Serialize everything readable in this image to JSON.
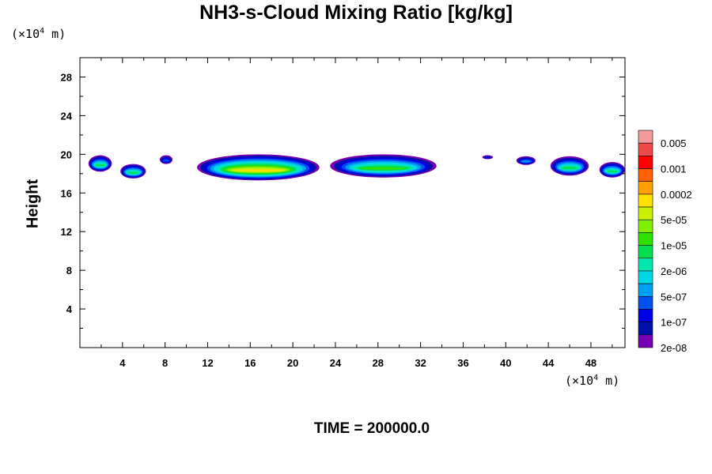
{
  "chart_data": {
    "type": "heatmap",
    "title": "NH3-s-Cloud Mixing Ratio [kg/kg]",
    "ylabel": "Height",
    "xlabel": "",
    "x_unit_prefix": "(×10",
    "x_unit_exp": "4",
    "x_unit_suffix": " m)",
    "y_unit_prefix": "(×10",
    "y_unit_exp": "4",
    "y_unit_suffix": " m)",
    "xlim": [
      0,
      51.2
    ],
    "ylim": [
      0,
      30
    ],
    "x_ticks": [
      4,
      8,
      12,
      16,
      20,
      24,
      28,
      32,
      36,
      40,
      44,
      48
    ],
    "y_ticks": [
      4,
      8,
      12,
      16,
      20,
      24,
      28
    ],
    "colorbar": {
      "labels": [
        "0.005",
        "0.001",
        "0.0002",
        "5e-05",
        "1e-05",
        "2e-06",
        "5e-07",
        "1e-07",
        "2e-08"
      ],
      "colors": [
        "#f39a9a",
        "#ee4a4a",
        "#ff0000",
        "#ff6000",
        "#ffa000",
        "#ffe000",
        "#c8f000",
        "#80f000",
        "#30e000",
        "#00e050",
        "#00e8b0",
        "#00d8e8",
        "#00a0f0",
        "#0050f0",
        "#0000e8",
        "#0010a8",
        "#7800b4"
      ]
    },
    "series": [
      {
        "x": [
          0.8,
          3.0
        ],
        "y": [
          18.2,
          19.9
        ],
        "peak": 9
      },
      {
        "x": [
          3.8,
          6.2
        ],
        "y": [
          17.5,
          19.0
        ],
        "peak": 9
      },
      {
        "x": [
          7.5,
          8.7
        ],
        "y": [
          19.0,
          19.9
        ],
        "peak": 13
      },
      {
        "x": [
          11.0,
          22.5
        ],
        "y": [
          17.3,
          20.0
        ],
        "peak": 5
      },
      {
        "x": [
          23.5,
          33.5
        ],
        "y": [
          17.6,
          20.0
        ],
        "peak": 8
      },
      {
        "x": [
          37.8,
          38.8
        ],
        "y": [
          19.5,
          19.9
        ],
        "peak": 14
      },
      {
        "x": [
          41.0,
          42.8
        ],
        "y": [
          18.9,
          19.8
        ],
        "peak": 12
      },
      {
        "x": [
          44.2,
          47.8
        ],
        "y": [
          17.8,
          19.8
        ],
        "peak": 9
      },
      {
        "x": [
          48.8,
          51.2
        ],
        "y": [
          17.6,
          19.2
        ],
        "peak": 9
      }
    ],
    "grid": false
  },
  "footer": {
    "time_label": "TIME = 200000.0"
  }
}
